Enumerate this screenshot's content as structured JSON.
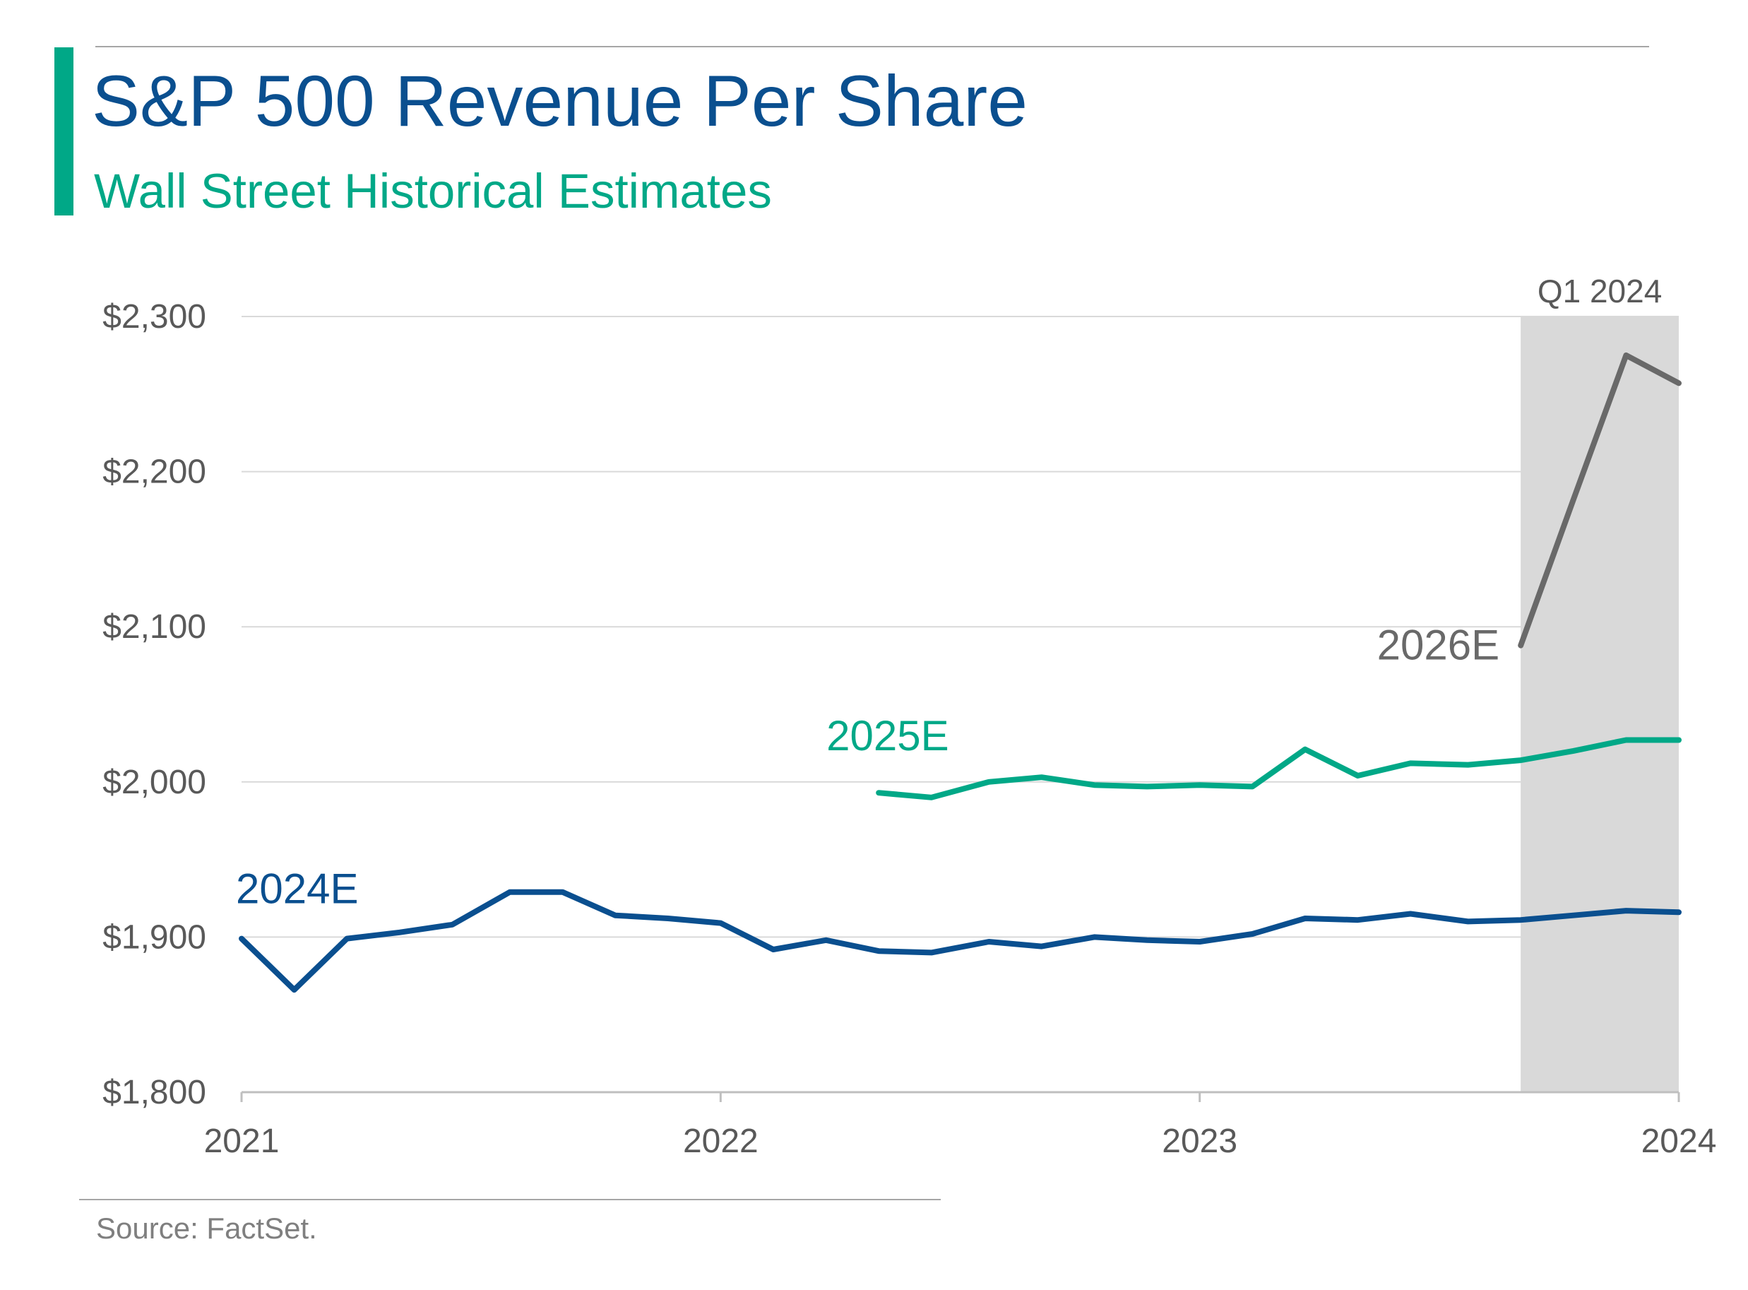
{
  "header": {
    "title": "S&P 500 Revenue Per Share",
    "subtitle": "Wall Street Historical Estimates"
  },
  "footer": {
    "source": "Source: FactSet."
  },
  "colors": {
    "title": "#0a4f8f",
    "accent": "#00a887",
    "series_2024E": "#0a4f8f",
    "series_2025E": "#00a887",
    "series_2026E": "#696969",
    "shade": "#d9d9d9",
    "grid": "#d9d9d9"
  },
  "chart_data": {
    "type": "line",
    "title": "S&P 500 Revenue Per Share",
    "subtitle": "Wall Street Historical Estimates",
    "xlabel": "",
    "ylabel": "",
    "xlim": [
      2021.0,
      2024.0
    ],
    "ylim": [
      1800,
      2300
    ],
    "x_ticks": [
      {
        "value": 2021,
        "label": "2021"
      },
      {
        "value": 2022,
        "label": "2022"
      },
      {
        "value": 2023,
        "label": "2023"
      },
      {
        "value": 2024,
        "label": "2024"
      }
    ],
    "y_ticks": [
      {
        "value": 1800,
        "label": "$1,800"
      },
      {
        "value": 1900,
        "label": "$1,900"
      },
      {
        "value": 2000,
        "label": "$2,000"
      },
      {
        "value": 2100,
        "label": "$2,100"
      },
      {
        "value": 2200,
        "label": "$2,200"
      },
      {
        "value": 2300,
        "label": "$2,300"
      }
    ],
    "grid": true,
    "shaded_region": {
      "label": "Q1 2024",
      "x_start": 2023.67,
      "x_end": 2024.0
    },
    "series": [
      {
        "name": "2024E",
        "color": "#0a4f8f",
        "points": [
          [
            2021.0,
            1899
          ],
          [
            2021.11,
            1866
          ],
          [
            2021.22,
            1899
          ],
          [
            2021.33,
            1903
          ],
          [
            2021.44,
            1908
          ],
          [
            2021.56,
            1929
          ],
          [
            2021.67,
            1929
          ],
          [
            2021.78,
            1914
          ],
          [
            2021.89,
            1912
          ],
          [
            2022.0,
            1909
          ],
          [
            2022.11,
            1892
          ],
          [
            2022.22,
            1898
          ],
          [
            2022.33,
            1891
          ],
          [
            2022.44,
            1890
          ],
          [
            2022.56,
            1897
          ],
          [
            2022.67,
            1894
          ],
          [
            2022.78,
            1900
          ],
          [
            2022.89,
            1898
          ],
          [
            2023.0,
            1897
          ],
          [
            2023.11,
            1902
          ],
          [
            2023.22,
            1912
          ],
          [
            2023.33,
            1911
          ],
          [
            2023.44,
            1915
          ],
          [
            2023.56,
            1910
          ],
          [
            2023.67,
            1911
          ],
          [
            2023.78,
            1914
          ],
          [
            2023.89,
            1917
          ],
          [
            2024.0,
            1916
          ]
        ]
      },
      {
        "name": "2025E",
        "color": "#00a887",
        "points": [
          [
            2022.33,
            1993
          ],
          [
            2022.44,
            1990
          ],
          [
            2022.56,
            2000
          ],
          [
            2022.67,
            2003
          ],
          [
            2022.78,
            1998
          ],
          [
            2022.89,
            1997
          ],
          [
            2023.0,
            1998
          ],
          [
            2023.11,
            1997
          ],
          [
            2023.22,
            2021
          ],
          [
            2023.33,
            2004
          ],
          [
            2023.44,
            2012
          ],
          [
            2023.56,
            2011
          ],
          [
            2023.67,
            2014
          ],
          [
            2023.78,
            2020
          ],
          [
            2023.89,
            2027
          ],
          [
            2024.0,
            2027
          ]
        ]
      },
      {
        "name": "2026E",
        "color": "#696969",
        "points": [
          [
            2023.67,
            2088
          ],
          [
            2023.78,
            2182
          ],
          [
            2023.89,
            2275
          ],
          [
            2024.0,
            2257
          ]
        ]
      }
    ]
  }
}
